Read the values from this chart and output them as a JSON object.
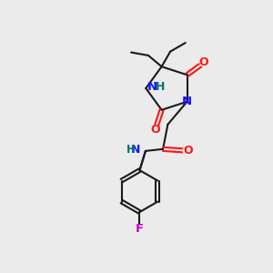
{
  "bg_color": "#ebebeb",
  "bond_color": "#1a1a1a",
  "N_color": "#1414ff",
  "O_color": "#ff1414",
  "F_color": "#cc00cc",
  "H_color": "#007070",
  "line_width": 1.5,
  "figsize": [
    3.0,
    3.0
  ],
  "dpi": 100,
  "xlim": [
    0,
    10
  ],
  "ylim": [
    0,
    10
  ]
}
